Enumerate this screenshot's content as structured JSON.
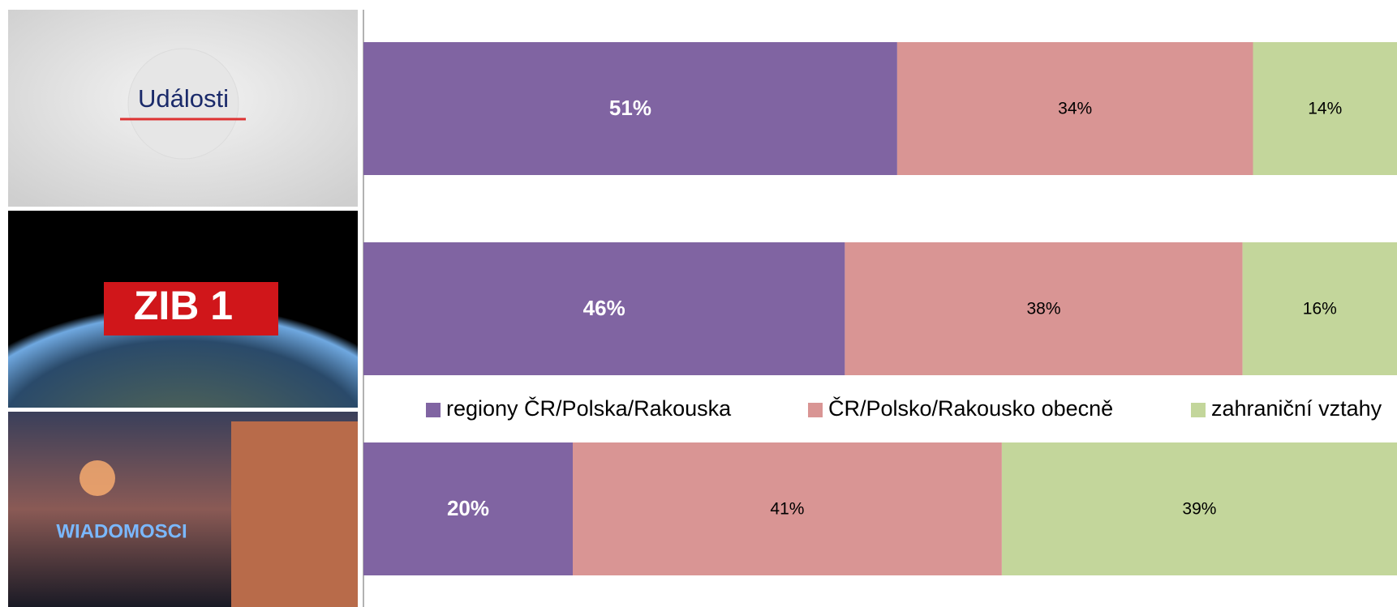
{
  "chart_data": {
    "type": "stacked_bar_horizontal",
    "categories": [
      "Události",
      "ZIB 1",
      "WIADOMOSCI"
    ],
    "series": [
      {
        "name": "regiony ČR/Polska/Rakouska",
        "color": "#8064a2",
        "values": [
          51,
          46,
          20
        ],
        "value_labels": [
          "51%",
          "46%",
          "20%"
        ]
      },
      {
        "name": "ČR/Polsko/Rakousko obecně",
        "color": "#d99594",
        "values": [
          34,
          38,
          41
        ],
        "value_labels": [
          "34%",
          "38%",
          "41%"
        ]
      },
      {
        "name": "zahraniční vztahy",
        "color": "#c3d69b",
        "values": [
          14,
          16,
          39
        ],
        "value_labels": [
          "14%",
          "16%",
          "39%"
        ]
      }
    ],
    "xlim": [
      0,
      100
    ]
  }
}
